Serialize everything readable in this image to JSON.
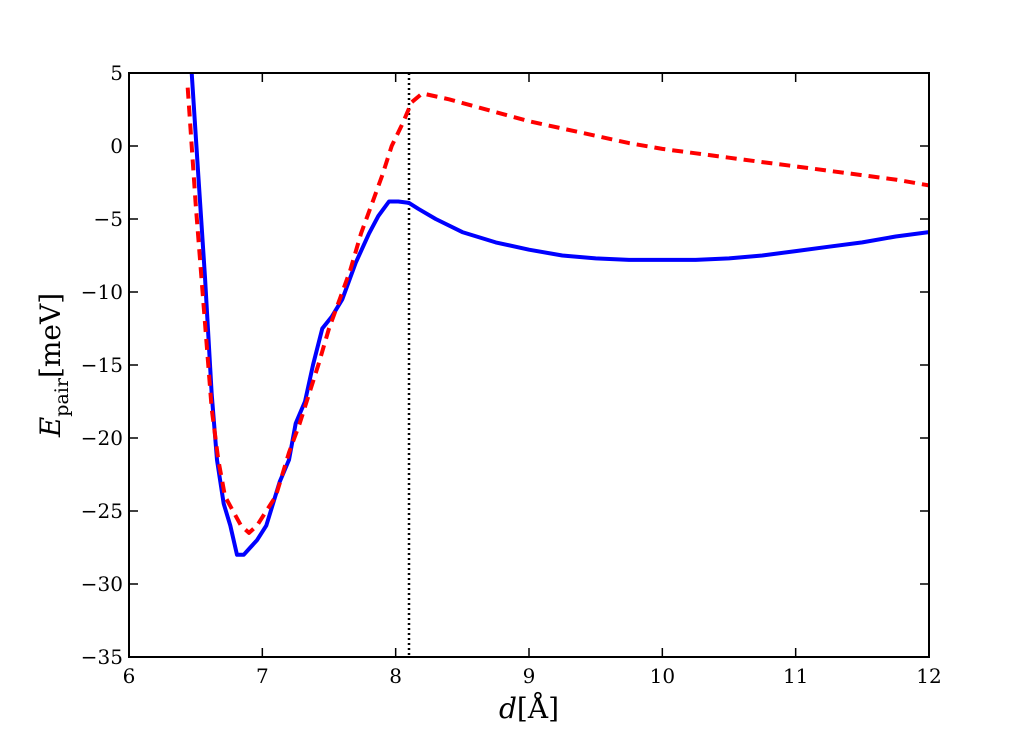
{
  "chart_data": {
    "type": "line",
    "xlabel": {
      "var": "d",
      "unit": "[Å]"
    },
    "ylabel": {
      "var": "E",
      "sub": "pair",
      "unit": "[meV]"
    },
    "xlim": [
      6,
      12
    ],
    "ylim": [
      -35,
      5
    ],
    "xticks": [
      "6",
      "7",
      "8",
      "9",
      "10",
      "11",
      "12"
    ],
    "yticks": [
      "5",
      "0",
      "−5",
      "−10",
      "−15",
      "−20",
      "−25",
      "−30",
      "−35"
    ],
    "grid": false,
    "legend": "none",
    "vline": {
      "x": 8.1,
      "style": "dotted",
      "color": "#000000"
    },
    "series": [
      {
        "color": "#0000ff",
        "style": "solid",
        "x": [
          6.47,
          6.52,
          6.57,
          6.62,
          6.66,
          6.71,
          6.76,
          6.81,
          6.86,
          6.91,
          6.96,
          7.03,
          7.13,
          7.2,
          7.25,
          7.32,
          7.38,
          7.45,
          7.52,
          7.6,
          7.7,
          7.8,
          7.87,
          7.95,
          8.02,
          8.1,
          8.17,
          8.3,
          8.5,
          8.75,
          9.0,
          9.25,
          9.5,
          9.75,
          10.0,
          10.25,
          10.5,
          10.75,
          11.0,
          11.25,
          11.5,
          11.75,
          12.0
        ],
        "y": [
          5.0,
          -2.0,
          -9.0,
          -17.0,
          -21.5,
          -24.5,
          -26.0,
          -28.0,
          -28.0,
          -27.5,
          -27.0,
          -26.0,
          -23.0,
          -21.5,
          -19.0,
          -17.5,
          -15.0,
          -12.5,
          -11.7,
          -10.5,
          -8.0,
          -6.0,
          -4.8,
          -3.8,
          -3.8,
          -3.9,
          -4.3,
          -5.0,
          -5.9,
          -6.6,
          -7.1,
          -7.5,
          -7.7,
          -7.8,
          -7.8,
          -7.8,
          -7.7,
          -7.5,
          -7.2,
          -6.9,
          -6.6,
          -6.2,
          -5.9
        ]
      },
      {
        "color": "#ff0000",
        "style": "dashed",
        "x": [
          6.44,
          6.5,
          6.56,
          6.62,
          6.67,
          6.72,
          6.78,
          6.84,
          6.9,
          6.96,
          7.03,
          7.1,
          7.2,
          7.28,
          7.35,
          7.42,
          7.5,
          7.58,
          7.66,
          7.74,
          7.82,
          7.9,
          7.97,
          8.05,
          8.12,
          8.2,
          8.4,
          8.6,
          8.8,
          9.0,
          9.25,
          9.5,
          9.75,
          10.0,
          10.25,
          10.5,
          10.75,
          11.0,
          11.25,
          11.5,
          11.75,
          12.0
        ],
        "y": [
          4.0,
          -4.0,
          -11.0,
          -18.0,
          -21.5,
          -24.0,
          -25.0,
          -26.0,
          -26.5,
          -26.0,
          -25.0,
          -24.0,
          -21.0,
          -19.0,
          -17.0,
          -15.0,
          -12.5,
          -10.5,
          -8.5,
          -6.0,
          -4.0,
          -2.0,
          0.0,
          1.5,
          3.0,
          3.6,
          3.2,
          2.7,
          2.2,
          1.7,
          1.2,
          0.7,
          0.2,
          -0.2,
          -0.5,
          -0.8,
          -1.1,
          -1.4,
          -1.7,
          -2.0,
          -2.3,
          -2.7
        ]
      }
    ]
  }
}
